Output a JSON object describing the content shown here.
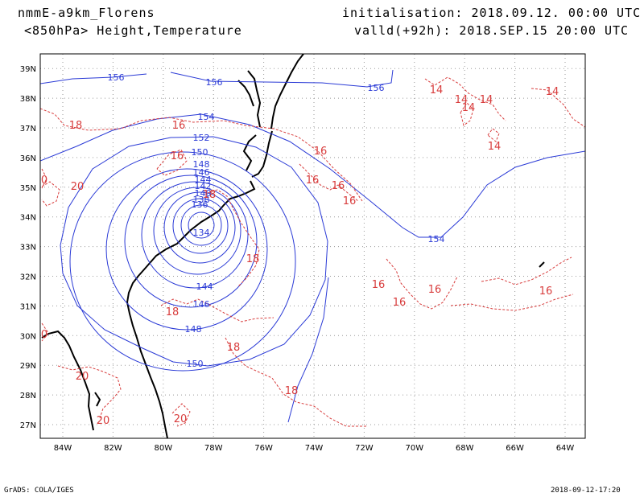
{
  "header": {
    "model": "nmmE-a9km_Florens",
    "field": "<850hPa> Height,Temperature",
    "init": "initialisation: 2018.09.12.  00:00 UTC",
    "valid": "valld(+92h): 2018.SEP.15 20:00 UTC"
  },
  "footer": {
    "credit": "GrADS: COLA/IGES",
    "timestamp": "2018-09-12-17:20"
  },
  "axes": {
    "lon_labels": [
      "84W",
      "82W",
      "80W",
      "78W",
      "76W",
      "74W",
      "72W",
      "70W",
      "68W",
      "66W",
      "64W"
    ],
    "lat_labels": [
      "39N",
      "38N",
      "37N",
      "36N",
      "35N",
      "34N",
      "33N",
      "32N",
      "31N",
      "30N",
      "29N",
      "28N",
      "27N"
    ]
  },
  "colors": {
    "height": "#2a3ad6",
    "temperature": "#d83c3c",
    "coast": "#000000",
    "grid": "#9a9a9a"
  },
  "height_contours": {
    "unit": "dam",
    "center_label": "134",
    "labels": [
      "156",
      "156",
      "156",
      "154",
      "154",
      "152",
      "150",
      "150",
      "148",
      "148",
      "146",
      "146",
      "144",
      "144",
      "142",
      "140",
      "138",
      "136",
      "134"
    ]
  },
  "temperature_contours": {
    "unit": "°C",
    "labels": [
      "14",
      "14",
      "14",
      "14",
      "14",
      "14",
      "16",
      "16",
      "16",
      "16",
      "16",
      "16",
      "16",
      "16",
      "16",
      "16",
      "18",
      "18",
      "18",
      "18",
      "18",
      "18",
      "20",
      "20",
      "20",
      "20",
      "0",
      "0"
    ]
  }
}
